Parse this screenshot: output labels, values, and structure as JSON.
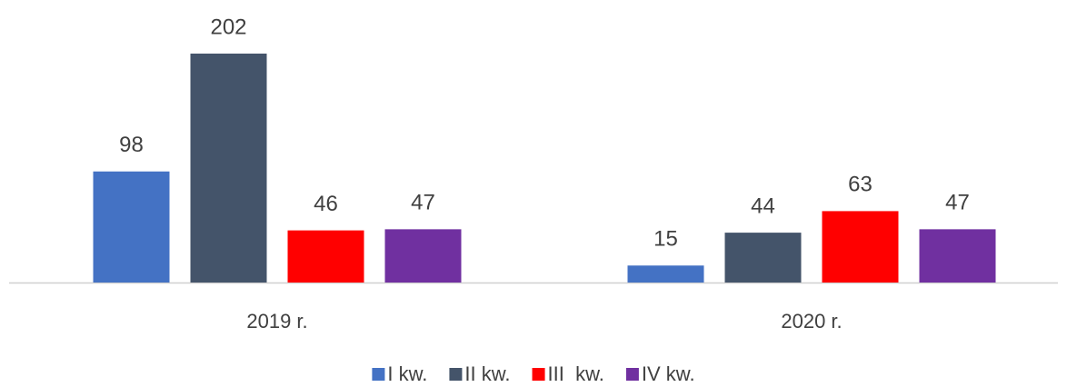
{
  "chart_data": {
    "type": "bar",
    "categories": [
      "2019 r.",
      "2020 r."
    ],
    "series": [
      {
        "name": "I kw.",
        "color": "#4472c4",
        "values": [
          98,
          15
        ]
      },
      {
        "name": "II kw.",
        "color": "#44546a",
        "values": [
          202,
          44
        ]
      },
      {
        "name": "III  kw.",
        "color": "#ff0000",
        "values": [
          46,
          63
        ]
      },
      {
        "name": "IV kw.",
        "color": "#7030a0",
        "values": [
          47,
          47
        ]
      }
    ],
    "legend": "bottom"
  }
}
